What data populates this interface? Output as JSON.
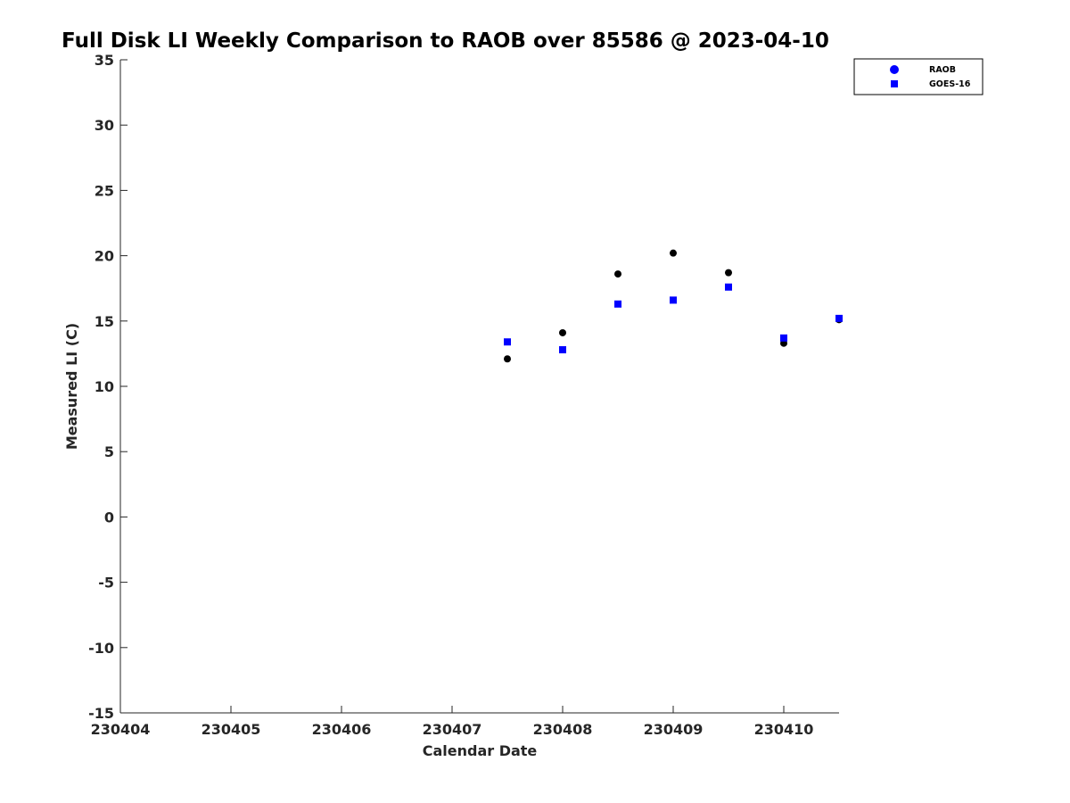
{
  "chart_data": {
    "type": "scatter",
    "title": "Full Disk LI Weekly Comparison to RAOB over 85586 @ 2023-04-10",
    "xlabel": "Calendar Date",
    "ylabel": "Measured LI (C)",
    "xlim": [
      "230404",
      "230410.5"
    ],
    "ylim": [
      -15,
      35
    ],
    "x_ticks": [
      "230404",
      "230405",
      "230406",
      "230407",
      "230408",
      "230409",
      "230410"
    ],
    "y_ticks": [
      35,
      30,
      25,
      20,
      15,
      10,
      5,
      0,
      -5,
      -10,
      -15
    ],
    "grid": false,
    "legend_position": "top-right",
    "series": [
      {
        "name": "RAOB",
        "marker": "circle",
        "color": "#000000",
        "legend_color": "#0000ff",
        "points": [
          {
            "x": "230407.5",
            "y": 12.1
          },
          {
            "x": "230408",
            "y": 14.1
          },
          {
            "x": "230408.5",
            "y": 18.6
          },
          {
            "x": "230409",
            "y": 20.2
          },
          {
            "x": "230409.5",
            "y": 18.7
          },
          {
            "x": "230410",
            "y": 13.3
          },
          {
            "x": "230410.5",
            "y": 15.1
          }
        ]
      },
      {
        "name": "GOES-16",
        "marker": "square",
        "color": "#0000ff",
        "legend_color": "#0000ff",
        "points": [
          {
            "x": "230407.5",
            "y": 13.4
          },
          {
            "x": "230408",
            "y": 12.8
          },
          {
            "x": "230408.5",
            "y": 16.3
          },
          {
            "x": "230409",
            "y": 16.6
          },
          {
            "x": "230409.5",
            "y": 17.6
          },
          {
            "x": "230410",
            "y": 13.7
          },
          {
            "x": "230410.5",
            "y": 15.2
          }
        ]
      }
    ]
  }
}
